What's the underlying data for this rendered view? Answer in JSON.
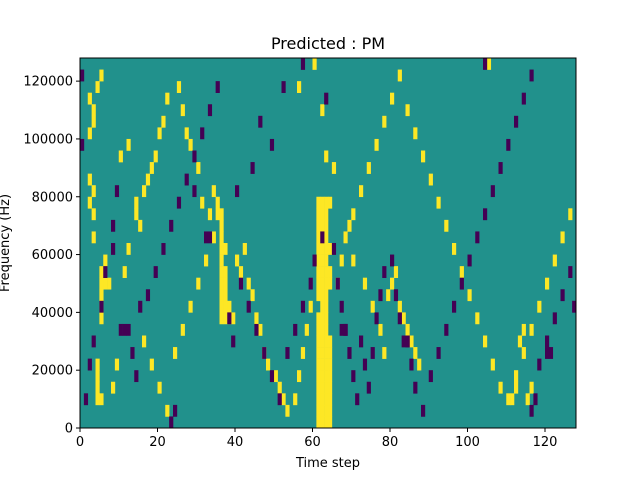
{
  "chart_data": {
    "type": "heatmap",
    "title": "Predicted : PM",
    "xlabel": "Time step",
    "ylabel": "Frequency (Hz)",
    "xlim": [
      0,
      128
    ],
    "ylim": [
      0,
      128000
    ],
    "x_ticks": [
      0,
      20,
      40,
      60,
      80,
      100,
      120
    ],
    "y_ticks": [
      0,
      20000,
      40000,
      60000,
      80000,
      100000,
      120000
    ],
    "y_tick_labels": [
      "0",
      "20000",
      "40000",
      "60000",
      "80000",
      "100000",
      "120000"
    ],
    "n_time_steps": 128,
    "n_freq_bins": 32,
    "background_value": 1,
    "colors": {
      "0": "#440154",
      "1": "#21918c",
      "2": "#fde725"
    },
    "cells": [
      [
        61,
        0,
        2
      ],
      [
        62,
        0,
        2
      ],
      [
        63,
        0,
        2
      ],
      [
        64,
        0,
        2
      ],
      [
        61,
        1,
        2
      ],
      [
        62,
        1,
        2
      ],
      [
        63,
        1,
        2
      ],
      [
        64,
        1,
        2
      ],
      [
        61,
        2,
        2
      ],
      [
        62,
        2,
        2
      ],
      [
        63,
        2,
        2
      ],
      [
        64,
        2,
        2
      ],
      [
        61,
        3,
        2
      ],
      [
        62,
        3,
        2
      ],
      [
        63,
        3,
        2
      ],
      [
        64,
        3,
        2
      ],
      [
        61,
        4,
        2
      ],
      [
        62,
        4,
        2
      ],
      [
        63,
        4,
        2
      ],
      [
        64,
        4,
        2
      ],
      [
        61,
        5,
        2
      ],
      [
        62,
        5,
        2
      ],
      [
        63,
        5,
        2
      ],
      [
        64,
        5,
        2
      ],
      [
        61,
        6,
        2
      ],
      [
        62,
        6,
        2
      ],
      [
        63,
        6,
        2
      ],
      [
        64,
        6,
        2
      ],
      [
        61,
        7,
        2
      ],
      [
        62,
        7,
        2
      ],
      [
        63,
        7,
        2
      ],
      [
        64,
        7,
        2
      ],
      [
        61,
        8,
        2
      ],
      [
        62,
        8,
        2
      ],
      [
        63,
        8,
        2
      ],
      [
        61,
        9,
        2
      ],
      [
        62,
        9,
        2
      ],
      [
        63,
        9,
        2
      ],
      [
        62,
        10,
        2
      ],
      [
        63,
        10,
        2
      ],
      [
        61,
        11,
        2
      ],
      [
        62,
        11,
        2
      ],
      [
        63,
        11,
        2
      ],
      [
        61,
        12,
        2
      ],
      [
        62,
        12,
        2
      ],
      [
        63,
        12,
        2
      ],
      [
        64,
        12,
        2
      ],
      [
        61,
        13,
        2
      ],
      [
        62,
        13,
        2
      ],
      [
        63,
        13,
        2
      ],
      [
        64,
        13,
        2
      ],
      [
        61,
        14,
        2
      ],
      [
        62,
        14,
        2
      ],
      [
        63,
        14,
        2
      ],
      [
        61,
        15,
        2
      ],
      [
        62,
        15,
        2
      ],
      [
        63,
        15,
        2
      ],
      [
        64,
        15,
        2
      ],
      [
        61,
        16,
        2
      ],
      [
        62,
        16,
        2
      ],
      [
        63,
        16,
        2
      ],
      [
        61,
        17,
        2
      ],
      [
        62,
        17,
        2
      ],
      [
        63,
        17,
        2
      ],
      [
        61,
        18,
        2
      ],
      [
        62,
        18,
        2
      ],
      [
        63,
        18,
        2
      ],
      [
        61,
        19,
        2
      ],
      [
        62,
        19,
        2
      ],
      [
        63,
        19,
        2
      ],
      [
        64,
        19,
        2
      ],
      [
        36,
        9,
        2
      ],
      [
        37,
        9,
        2
      ],
      [
        38,
        9,
        2
      ],
      [
        39,
        9,
        2
      ],
      [
        36,
        10,
        2
      ],
      [
        37,
        10,
        2
      ],
      [
        38,
        10,
        2
      ],
      [
        36,
        11,
        2
      ],
      [
        37,
        11,
        2
      ],
      [
        36,
        12,
        2
      ],
      [
        37,
        12,
        2
      ],
      [
        36,
        13,
        2
      ],
      [
        37,
        13,
        2
      ],
      [
        36,
        14,
        2
      ],
      [
        36,
        15,
        2
      ],
      [
        37,
        15,
        2
      ],
      [
        36,
        16,
        2
      ],
      [
        36,
        17,
        2
      ],
      [
        35,
        18,
        2
      ],
      [
        36,
        18,
        2
      ],
      [
        35,
        19,
        2
      ],
      [
        4,
        2,
        2
      ],
      [
        5,
        2,
        2
      ],
      [
        4,
        3,
        2
      ],
      [
        4,
        4,
        2
      ],
      [
        4,
        5,
        2
      ],
      [
        5,
        9,
        2
      ],
      [
        5,
        10,
        2
      ],
      [
        5,
        11,
        2
      ],
      [
        5,
        12,
        2
      ],
      [
        5,
        13,
        2
      ],
      [
        6,
        12,
        2
      ],
      [
        7,
        12,
        2
      ],
      [
        6,
        14,
        2
      ],
      [
        3,
        16,
        2
      ],
      [
        3,
        18,
        2
      ],
      [
        2,
        19,
        2
      ],
      [
        3,
        20,
        2
      ],
      [
        2,
        21,
        2
      ],
      [
        2,
        25,
        2
      ],
      [
        3,
        26,
        2
      ],
      [
        2,
        28,
        2
      ],
      [
        4,
        29,
        2
      ],
      [
        5,
        30,
        2
      ],
      [
        3,
        27,
        2
      ],
      [
        8,
        3,
        2
      ],
      [
        9,
        5,
        2
      ],
      [
        11,
        13,
        2
      ],
      [
        12,
        15,
        2
      ],
      [
        14,
        19,
        2
      ],
      [
        15,
        17,
        2
      ],
      [
        16,
        20,
        2
      ],
      [
        17,
        21,
        2
      ],
      [
        18,
        22,
        2
      ],
      [
        19,
        23,
        2
      ],
      [
        20,
        25,
        2
      ],
      [
        21,
        26,
        2
      ],
      [
        22,
        28,
        2
      ],
      [
        25,
        29,
        2
      ],
      [
        26,
        27,
        2
      ],
      [
        27,
        25,
        2
      ],
      [
        28,
        24,
        2
      ],
      [
        30,
        22,
        2
      ],
      [
        31,
        19,
        2
      ],
      [
        33,
        18,
        2
      ],
      [
        34,
        16,
        2
      ],
      [
        40,
        14,
        2
      ],
      [
        41,
        13,
        2
      ],
      [
        42,
        15,
        2
      ],
      [
        43,
        12,
        2
      ],
      [
        44,
        11,
        2
      ],
      [
        45,
        9,
        2
      ],
      [
        46,
        8,
        2
      ],
      [
        47,
        6,
        2
      ],
      [
        48,
        5,
        2
      ],
      [
        50,
        4,
        2
      ],
      [
        51,
        3,
        2
      ],
      [
        52,
        2,
        2
      ],
      [
        53,
        1,
        2
      ],
      [
        55,
        2,
        2
      ],
      [
        56,
        4,
        2
      ],
      [
        57,
        6,
        2
      ],
      [
        58,
        8,
        2
      ],
      [
        59,
        10,
        2
      ],
      [
        66,
        12,
        2
      ],
      [
        67,
        14,
        2
      ],
      [
        68,
        16,
        2
      ],
      [
        70,
        18,
        2
      ],
      [
        72,
        20,
        2
      ],
      [
        74,
        22,
        2
      ],
      [
        76,
        24,
        2
      ],
      [
        78,
        26,
        2
      ],
      [
        80,
        28,
        2
      ],
      [
        82,
        30,
        2
      ],
      [
        84,
        27,
        2
      ],
      [
        86,
        25,
        2
      ],
      [
        88,
        23,
        2
      ],
      [
        90,
        21,
        2
      ],
      [
        92,
        19,
        2
      ],
      [
        94,
        17,
        2
      ],
      [
        96,
        15,
        2
      ],
      [
        98,
        13,
        2
      ],
      [
        100,
        11,
        2
      ],
      [
        102,
        9,
        2
      ],
      [
        104,
        7,
        2
      ],
      [
        106,
        5,
        2
      ],
      [
        108,
        3,
        2
      ],
      [
        110,
        2,
        2
      ],
      [
        112,
        4,
        2
      ],
      [
        114,
        6,
        2
      ],
      [
        116,
        8,
        2
      ],
      [
        118,
        10,
        2
      ],
      [
        120,
        12,
        2
      ],
      [
        122,
        14,
        2
      ],
      [
        124,
        16,
        2
      ],
      [
        126,
        18,
        2
      ],
      [
        79,
        11,
        2
      ],
      [
        80,
        12,
        2
      ],
      [
        81,
        13,
        2
      ],
      [
        82,
        10,
        2
      ],
      [
        83,
        9,
        2
      ],
      [
        84,
        8,
        2
      ],
      [
        85,
        7,
        2
      ],
      [
        86,
        6,
        2
      ],
      [
        87,
        5,
        2
      ],
      [
        111,
        2,
        2
      ],
      [
        112,
        3,
        2
      ],
      [
        113,
        7,
        2
      ],
      [
        114,
        8,
        2
      ],
      [
        115,
        2,
        2
      ],
      [
        116,
        3,
        2
      ],
      [
        105,
        31,
        2
      ],
      [
        60,
        31,
        2
      ],
      [
        56,
        29,
        2
      ],
      [
        62,
        27,
        2
      ],
      [
        63,
        23,
        2
      ],
      [
        65,
        22,
        2
      ],
      [
        69,
        17,
        2
      ],
      [
        70,
        14,
        2
      ],
      [
        73,
        12,
        2
      ],
      [
        75,
        10,
        2
      ],
      [
        77,
        8,
        2
      ],
      [
        78,
        6,
        2
      ],
      [
        10,
        23,
        2
      ],
      [
        12,
        24,
        2
      ],
      [
        14,
        18,
        2
      ],
      [
        16,
        7,
        2
      ],
      [
        18,
        5,
        2
      ],
      [
        20,
        3,
        2
      ],
      [
        22,
        1,
        2
      ],
      [
        24,
        6,
        2
      ],
      [
        26,
        8,
        2
      ],
      [
        28,
        10,
        2
      ],
      [
        30,
        12,
        2
      ],
      [
        32,
        14,
        2
      ],
      [
        34,
        20,
        2
      ],
      [
        10,
        8,
        0
      ],
      [
        11,
        8,
        0
      ],
      [
        12,
        8,
        0
      ],
      [
        23,
        0,
        0
      ],
      [
        24,
        1,
        0
      ],
      [
        14,
        4,
        0
      ],
      [
        13,
        6,
        0
      ],
      [
        15,
        10,
        0
      ],
      [
        17,
        11,
        0
      ],
      [
        19,
        13,
        0
      ],
      [
        21,
        15,
        0
      ],
      [
        23,
        17,
        0
      ],
      [
        25,
        19,
        0
      ],
      [
        27,
        21,
        0
      ],
      [
        29,
        23,
        0
      ],
      [
        31,
        25,
        0
      ],
      [
        33,
        27,
        0
      ],
      [
        35,
        29,
        0
      ],
      [
        32,
        16,
        0
      ],
      [
        33,
        16,
        0
      ],
      [
        29,
        20,
        0
      ],
      [
        39,
        7,
        0
      ],
      [
        38,
        9,
        0
      ],
      [
        41,
        12,
        0
      ],
      [
        43,
        10,
        0
      ],
      [
        45,
        8,
        0
      ],
      [
        47,
        6,
        0
      ],
      [
        49,
        4,
        0
      ],
      [
        51,
        2,
        0
      ],
      [
        53,
        6,
        0
      ],
      [
        55,
        8,
        0
      ],
      [
        57,
        10,
        0
      ],
      [
        59,
        12,
        0
      ],
      [
        60,
        14,
        0
      ],
      [
        62,
        16,
        0
      ],
      [
        65,
        15,
        0
      ],
      [
        66,
        12,
        0
      ],
      [
        67,
        10,
        0
      ],
      [
        68,
        8,
        0
      ],
      [
        69,
        6,
        0
      ],
      [
        70,
        4,
        0
      ],
      [
        71,
        2,
        0
      ],
      [
        72,
        7,
        0
      ],
      [
        73,
        5,
        0
      ],
      [
        74,
        3,
        0
      ],
      [
        75,
        6,
        0
      ],
      [
        76,
        9,
        0
      ],
      [
        77,
        11,
        0
      ],
      [
        78,
        13,
        0
      ],
      [
        80,
        14,
        0
      ],
      [
        81,
        11,
        0
      ],
      [
        82,
        9,
        0
      ],
      [
        84,
        7,
        0
      ],
      [
        85,
        5,
        0
      ],
      [
        86,
        3,
        0
      ],
      [
        88,
        1,
        0
      ],
      [
        90,
        4,
        0
      ],
      [
        92,
        6,
        0
      ],
      [
        94,
        8,
        0
      ],
      [
        96,
        10,
        0
      ],
      [
        98,
        12,
        0
      ],
      [
        100,
        14,
        0
      ],
      [
        102,
        16,
        0
      ],
      [
        104,
        18,
        0
      ],
      [
        106,
        20,
        0
      ],
      [
        108,
        22,
        0
      ],
      [
        110,
        24,
        0
      ],
      [
        112,
        26,
        0
      ],
      [
        114,
        28,
        0
      ],
      [
        116,
        30,
        0
      ],
      [
        118,
        5,
        0
      ],
      [
        120,
        7,
        0
      ],
      [
        122,
        9,
        0
      ],
      [
        124,
        11,
        0
      ],
      [
        126,
        13,
        0
      ],
      [
        67,
        8,
        0
      ],
      [
        68,
        8,
        0
      ],
      [
        83,
        7,
        0
      ],
      [
        84,
        7,
        0
      ],
      [
        116,
        1,
        0
      ],
      [
        117,
        2,
        0
      ],
      [
        120,
        6,
        0
      ],
      [
        121,
        6,
        0
      ],
      [
        127,
        10,
        0
      ],
      [
        104,
        31,
        0
      ],
      [
        57,
        31,
        0
      ],
      [
        52,
        29,
        0
      ],
      [
        63,
        28,
        0
      ],
      [
        46,
        26,
        0
      ],
      [
        49,
        24,
        0
      ],
      [
        44,
        22,
        0
      ],
      [
        40,
        20,
        0
      ],
      [
        9,
        20,
        0
      ],
      [
        8,
        17,
        0
      ],
      [
        8,
        15,
        0
      ],
      [
        6,
        13,
        0
      ],
      [
        5,
        10,
        0
      ],
      [
        3,
        7,
        0
      ],
      [
        2,
        5,
        0
      ],
      [
        1,
        2,
        0
      ],
      [
        0,
        24,
        0
      ],
      [
        0,
        30,
        0
      ]
    ]
  }
}
